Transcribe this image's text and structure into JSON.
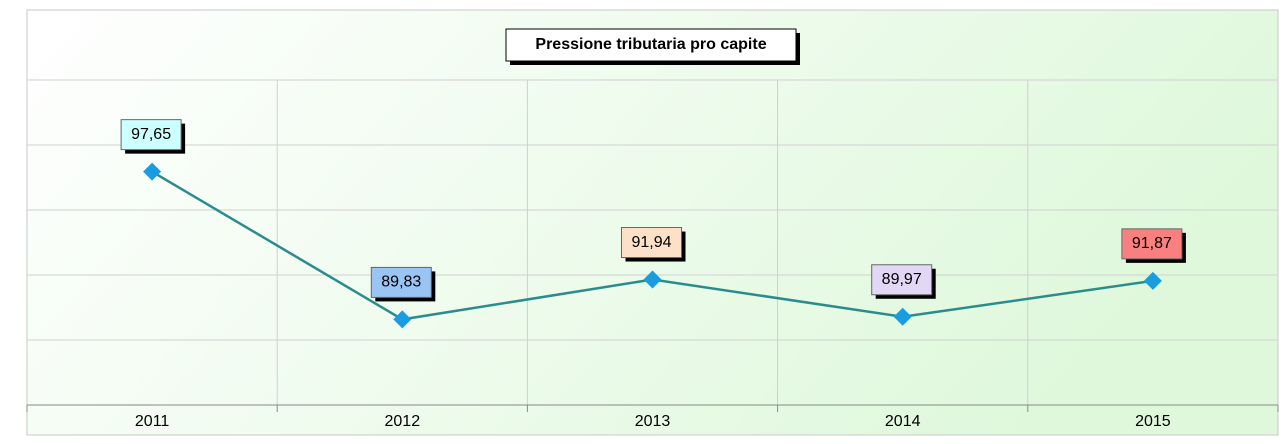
{
  "chart_data": {
    "type": "line",
    "title": "Pressione tributaria pro capite",
    "categories": [
      "2011",
      "2012",
      "2013",
      "2014",
      "2015"
    ],
    "values": [
      97.65,
      89.83,
      91.94,
      89.97,
      91.87
    ],
    "value_labels": [
      "97,65",
      "89,83",
      "91,94",
      "89,97",
      "91,87"
    ],
    "label_colors": [
      "#ccffff",
      "#99c4f4",
      "#fde0c8",
      "#e2d8f6",
      "#f88080"
    ],
    "color": "#2a8c8c",
    "marker_color": "#1a9ce0",
    "ylim": [
      85.3,
      102.5
    ],
    "yticks": [
      85.3,
      88.74,
      92.18,
      95.62,
      99.06,
      102.5
    ],
    "grid": true
  }
}
